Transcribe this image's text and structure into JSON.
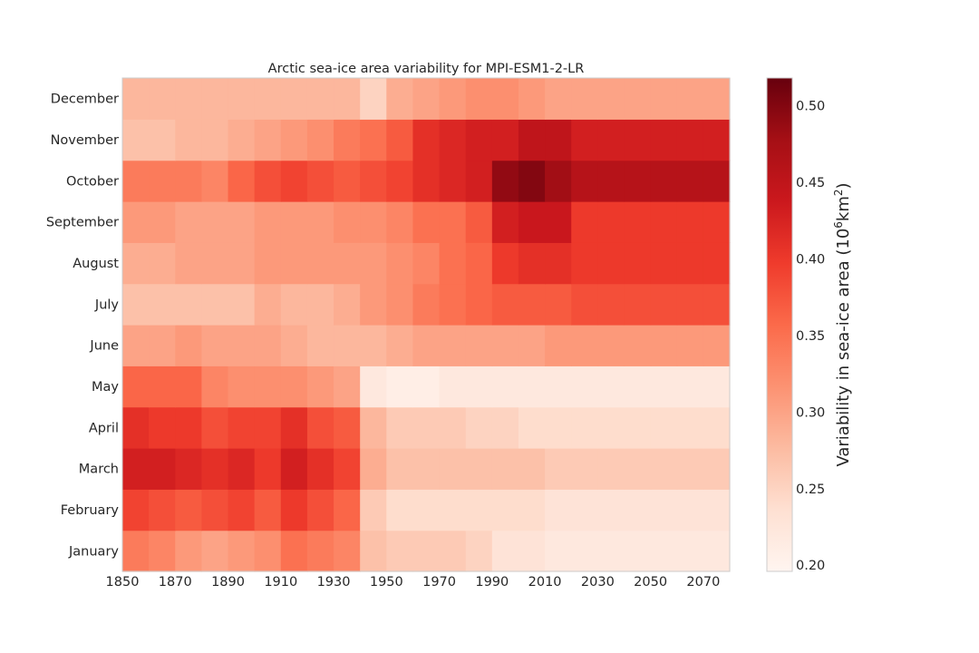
{
  "chart_data": {
    "type": "heatmap",
    "title": "Arctic sea-ice area variability for MPI-ESM1-2-LR",
    "xlabel": "",
    "ylabel": "",
    "colorbar": {
      "label": "Variability in sea-ice area (10⁶km²)",
      "label_main": "Variability in sea-ice area (10",
      "label_sup1": "6",
      "label_mid": "km",
      "label_sup2": "2",
      "label_close": ")",
      "range": [
        0.196,
        0.518
      ],
      "ticks": [
        0.2,
        0.25,
        0.3,
        0.35,
        0.4,
        0.45,
        0.5
      ],
      "tick_labels": [
        "0.20",
        "0.25",
        "0.30",
        "0.35",
        "0.40",
        "0.45",
        "0.50"
      ],
      "colormap": "Reds"
    },
    "x_range": [
      1850,
      2080
    ],
    "x_ticks": [
      1850,
      1870,
      1890,
      1910,
      1930,
      1950,
      1970,
      1990,
      2010,
      2030,
      2050,
      2070
    ],
    "x_tick_labels": [
      "1850",
      "1870",
      "1890",
      "1910",
      "1930",
      "1950",
      "1970",
      "1990",
      "2010",
      "2030",
      "2050",
      "2070"
    ],
    "rows": [
      "January",
      "February",
      "March",
      "April",
      "May",
      "June",
      "July",
      "August",
      "September",
      "October",
      "November",
      "December"
    ],
    "grid": false,
    "bin_years": 10,
    "values": {
      "January": [
        0.34,
        0.33,
        0.31,
        0.3,
        0.31,
        0.32,
        0.35,
        0.34,
        0.33,
        0.27,
        0.26,
        0.26,
        0.26,
        0.25,
        0.23,
        0.23,
        0.22,
        0.22,
        0.22,
        0.22,
        0.22,
        0.22,
        0.22
      ],
      "February": [
        0.39,
        0.38,
        0.37,
        0.38,
        0.39,
        0.37,
        0.4,
        0.38,
        0.36,
        0.26,
        0.24,
        0.24,
        0.24,
        0.24,
        0.24,
        0.24,
        0.23,
        0.23,
        0.23,
        0.23,
        0.23,
        0.23,
        0.23
      ],
      "March": [
        0.43,
        0.43,
        0.42,
        0.41,
        0.42,
        0.4,
        0.43,
        0.41,
        0.39,
        0.29,
        0.27,
        0.27,
        0.27,
        0.27,
        0.27,
        0.27,
        0.26,
        0.26,
        0.26,
        0.26,
        0.26,
        0.26,
        0.26
      ],
      "April": [
        0.41,
        0.4,
        0.4,
        0.38,
        0.39,
        0.39,
        0.41,
        0.38,
        0.37,
        0.28,
        0.26,
        0.26,
        0.26,
        0.25,
        0.25,
        0.24,
        0.24,
        0.24,
        0.24,
        0.24,
        0.24,
        0.24,
        0.24
      ],
      "May": [
        0.36,
        0.36,
        0.36,
        0.33,
        0.32,
        0.32,
        0.32,
        0.31,
        0.3,
        0.22,
        0.21,
        0.21,
        0.22,
        0.22,
        0.22,
        0.22,
        0.22,
        0.22,
        0.22,
        0.22,
        0.22,
        0.22,
        0.22
      ],
      "June": [
        0.3,
        0.3,
        0.31,
        0.3,
        0.3,
        0.3,
        0.29,
        0.28,
        0.28,
        0.28,
        0.29,
        0.3,
        0.3,
        0.3,
        0.3,
        0.3,
        0.31,
        0.31,
        0.31,
        0.31,
        0.31,
        0.31,
        0.31
      ],
      "July": [
        0.27,
        0.27,
        0.27,
        0.27,
        0.27,
        0.29,
        0.28,
        0.28,
        0.29,
        0.31,
        0.32,
        0.34,
        0.35,
        0.36,
        0.37,
        0.37,
        0.37,
        0.38,
        0.38,
        0.38,
        0.38,
        0.38,
        0.38
      ],
      "August": [
        0.29,
        0.29,
        0.3,
        0.3,
        0.3,
        0.31,
        0.31,
        0.31,
        0.31,
        0.31,
        0.32,
        0.33,
        0.35,
        0.36,
        0.4,
        0.41,
        0.41,
        0.4,
        0.4,
        0.4,
        0.4,
        0.4,
        0.4
      ],
      "September": [
        0.31,
        0.31,
        0.3,
        0.3,
        0.3,
        0.31,
        0.31,
        0.31,
        0.32,
        0.32,
        0.33,
        0.35,
        0.35,
        0.37,
        0.43,
        0.44,
        0.44,
        0.4,
        0.4,
        0.4,
        0.4,
        0.4,
        0.4
      ],
      "October": [
        0.34,
        0.34,
        0.34,
        0.33,
        0.36,
        0.38,
        0.39,
        0.38,
        0.37,
        0.38,
        0.39,
        0.41,
        0.42,
        0.43,
        0.49,
        0.5,
        0.48,
        0.46,
        0.46,
        0.46,
        0.46,
        0.46,
        0.46
      ],
      "November": [
        0.27,
        0.27,
        0.28,
        0.28,
        0.29,
        0.3,
        0.31,
        0.32,
        0.34,
        0.35,
        0.37,
        0.41,
        0.42,
        0.43,
        0.43,
        0.45,
        0.45,
        0.43,
        0.43,
        0.43,
        0.43,
        0.43,
        0.43
      ],
      "December": [
        0.28,
        0.28,
        0.28,
        0.28,
        0.28,
        0.28,
        0.28,
        0.28,
        0.28,
        0.25,
        0.29,
        0.3,
        0.31,
        0.32,
        0.32,
        0.31,
        0.3,
        0.3,
        0.3,
        0.3,
        0.3,
        0.3,
        0.3
      ]
    }
  }
}
